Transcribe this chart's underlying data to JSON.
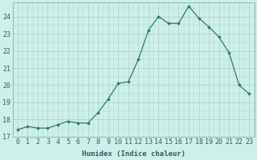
{
  "x": [
    0,
    1,
    2,
    3,
    4,
    5,
    6,
    7,
    8,
    9,
    10,
    11,
    12,
    13,
    14,
    15,
    16,
    17,
    18,
    19,
    20,
    21,
    22,
    23
  ],
  "y": [
    17.4,
    17.6,
    17.5,
    17.5,
    17.7,
    17.9,
    17.8,
    17.8,
    18.4,
    19.2,
    20.1,
    20.2,
    21.5,
    23.2,
    24.0,
    23.6,
    23.6,
    24.6,
    23.9,
    23.4,
    22.8,
    21.9,
    20.0,
    19.5
  ],
  "xlabel": "Humidex (Indice chaleur)",
  "line_color": "#2d7d6d",
  "marker_color": "#2d7d6d",
  "bg_color": "#cef0ea",
  "grid_color": "#aed4cc",
  "ylim": [
    17,
    24.8
  ],
  "xlim": [
    -0.5,
    23.5
  ],
  "yticks": [
    17,
    18,
    19,
    20,
    21,
    22,
    23,
    24
  ],
  "xticks": [
    0,
    1,
    2,
    3,
    4,
    5,
    6,
    7,
    8,
    9,
    10,
    11,
    12,
    13,
    14,
    15,
    16,
    17,
    18,
    19,
    20,
    21,
    22,
    23
  ],
  "xlabel_fontsize": 6.5,
  "tick_fontsize": 6.0
}
